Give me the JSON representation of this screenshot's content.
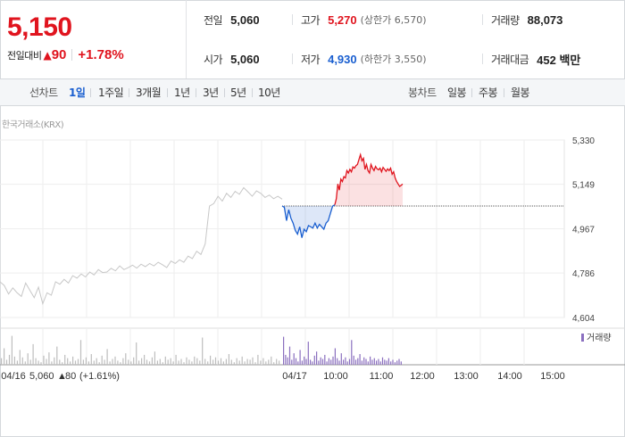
{
  "summary": {
    "price": "5,150",
    "change_label": "전일대비",
    "change_arrow": "▲",
    "change_value": "90",
    "change_rate": "+1.78%",
    "prev_close_label": "전일",
    "prev_close": "5,060",
    "open_label": "시가",
    "open": "5,060",
    "high_label": "고가",
    "high": "5,270",
    "upper_limit": "(상한가 6,570)",
    "low_label": "저가",
    "low": "4,930",
    "lower_limit": "(하한가 3,550)",
    "volume_label": "거래량",
    "volume": "88,073",
    "amount_label": "거래대금",
    "amount": "452 백만"
  },
  "toolbar": {
    "line_chart_label": "선차트",
    "periods": [
      "1일",
      "1주일",
      "3개월",
      "1년",
      "3년",
      "5년",
      "10년"
    ],
    "active_period": "1일",
    "candle_chart_label": "봉차트",
    "candles": [
      "일봉",
      "주봉",
      "월봉"
    ]
  },
  "exchange_label": "한국거래소(KRX)",
  "colors": {
    "up": "#e0141e",
    "down": "#1a5fd0",
    "previous_day": "#c7c7c7",
    "volume_today": "#8a6fbf"
  },
  "icons": [
    "up-triangle-icon"
  ],
  "chart_data": {
    "type": "line",
    "y_ticks": [
      "5,330",
      "5,149",
      "4,967",
      "4,786",
      "4,604"
    ],
    "ylim": [
      4604,
      5330
    ],
    "x_ticks": [
      "04/16",
      "04/17",
      "10:00",
      "11:00",
      "12:00",
      "13:00",
      "14:00",
      "15:00"
    ],
    "baseline": 5060,
    "legend": "거래량",
    "prev_day_footer": {
      "date": "04/16",
      "price": "5,060",
      "arrow": "▲",
      "change": "80",
      "rate": "(+1.61%)"
    },
    "series": [
      {
        "values": [
          4750,
          4735,
          4700,
          4725,
          4705,
          4690,
          4745,
          4715,
          4685,
          4728,
          4660,
          4705,
          4695,
          4750,
          4740,
          4760,
          4745,
          4775,
          4765,
          4782,
          4770,
          4790,
          4778,
          4800,
          4788,
          4790,
          4805,
          4795,
          4815,
          4800,
          4808,
          4818,
          4806,
          4822,
          4812,
          4825,
          4815,
          4830,
          4820,
          4808,
          4835,
          4825,
          4840,
          4830,
          4855,
          4845,
          4875,
          4862,
          4905,
          5060,
          5070,
          5100,
          5080,
          5112,
          5095,
          5120,
          5108,
          5135,
          5118,
          5100,
          5122,
          5112,
          5095,
          5105,
          5090,
          5100,
          5088
        ]
      },
      {
        "name": "",
        "values": [
          5060,
          5055,
          5000,
          5045,
          5010,
          4990,
          4960,
          4945,
          4975,
          4930,
          4965,
          4955,
          4980,
          4975,
          4970,
          4990,
          4970,
          4985,
          4975,
          4965,
          4990,
          5000,
          5030,
          5060,
          5065
        ]
      },
      {
        "name": "",
        "values": [
          5065,
          5090,
          5150,
          5125,
          5170,
          5160,
          5180,
          5175,
          5205,
          5195,
          5210,
          5200,
          5220,
          5215,
          5225,
          5230,
          5250,
          5270,
          5245,
          5255,
          5210,
          5230,
          5205,
          5195,
          5230,
          5215,
          5205,
          5222,
          5212,
          5208,
          5215,
          5200,
          5218,
          5210,
          5202,
          5212,
          5205,
          5215,
          5190,
          5200,
          5175,
          5160,
          5150,
          5140,
          5145,
          5150
        ]
      }
    ],
    "volume": {
      "prev_day": [
        8,
        20,
        6,
        12,
        35,
        10,
        5,
        18,
        9,
        4,
        14,
        6,
        25,
        8,
        5,
        3,
        11,
        7,
        15,
        4,
        9,
        22,
        6,
        3,
        12,
        8,
        4,
        10,
        5,
        7,
        30,
        6,
        9,
        4,
        13,
        5,
        8,
        3,
        11,
        6,
        19,
        4,
        7,
        10,
        5,
        3,
        8,
        14,
        6,
        4,
        9,
        27,
        5,
        8,
        12,
        6,
        4,
        9,
        16,
        5,
        7,
        3,
        10,
        6,
        8,
        4,
        12,
        5,
        7,
        3,
        9,
        6,
        4,
        10,
        8,
        5,
        33,
        7,
        4,
        11,
        6,
        9,
        5,
        8,
        4,
        7,
        13,
        6,
        3,
        8,
        5,
        10,
        4,
        7,
        6,
        9,
        3,
        12,
        5,
        8,
        4,
        6,
        10,
        3,
        7,
        5
      ],
      "today": [
        34,
        12,
        9,
        22,
        6,
        14,
        8,
        4,
        18,
        5,
        10,
        7,
        28,
        6,
        4,
        11,
        16,
        5,
        9,
        7,
        12,
        4,
        8,
        6,
        10,
        20,
        8,
        5,
        14,
        6,
        9,
        4,
        7,
        30,
        11,
        6,
        8,
        13,
        5,
        9,
        7,
        4,
        10,
        6,
        8,
        5,
        7,
        4,
        9,
        6,
        5,
        8,
        4,
        6,
        3,
        5,
        7,
        4
      ]
    }
  }
}
